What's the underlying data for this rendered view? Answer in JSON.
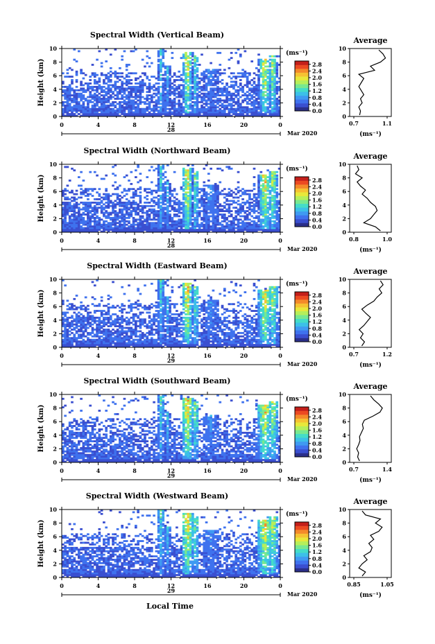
{
  "page": {
    "xlabel": "Local Time"
  },
  "colormap": [
    "#2b2f8a",
    "#3a4fd0",
    "#3f72ee",
    "#3f9af2",
    "#3cc0e8",
    "#44dcc8",
    "#78e890",
    "#b6ef5a",
    "#e8e83a",
    "#f6c232",
    "#f48a2a",
    "#ec4a22",
    "#c41f1a"
  ],
  "chart_data": [
    {
      "type": "heatmap",
      "title": "Spectral Width (Vertical Beam)",
      "ylabel": "Height (km)",
      "xticks": [
        "0",
        "4",
        "8",
        "12",
        "16",
        "20",
        "0"
      ],
      "xlim": [
        0,
        24
      ],
      "date_label": "28",
      "month_label": "Mar 2020",
      "yticks": [
        "0",
        "2",
        "4",
        "6",
        "8",
        "10"
      ],
      "ylim": [
        0,
        10
      ],
      "colorbar": {
        "unit": "(ms⁻¹)",
        "ticks": [
          "0.0",
          "0.4",
          "0.8",
          "1.2",
          "1.6",
          "2.0",
          "2.4",
          "2.8"
        ],
        "range": [
          0,
          3.0
        ]
      },
      "profile": {
        "title": "Average",
        "unit": "(ms⁻¹)",
        "xticks": [
          "0.7",
          "1.1"
        ],
        "xlim": [
          0.7,
          1.1
        ],
        "heights": [
          0.2,
          0.8,
          1.4,
          2,
          2.6,
          3.2,
          3.8,
          4.4,
          5,
          5.6,
          6.2,
          6.8,
          7.4,
          8,
          8.6,
          9.2,
          9.8
        ],
        "values": [
          0.77,
          0.78,
          0.76,
          0.8,
          0.78,
          0.82,
          0.79,
          0.76,
          0.79,
          0.82,
          0.76,
          0.95,
          0.9,
          1.02,
          1.08,
          1.05,
          1.0
        ]
      }
    },
    {
      "type": "heatmap",
      "title": "Spectral Width (Northward Beam)",
      "ylabel": "Height (km)",
      "xticks": [
        "0",
        "4",
        "8",
        "12",
        "16",
        "20",
        "0"
      ],
      "xlim": [
        0,
        24
      ],
      "date_label": "28",
      "month_label": "Mar 2020",
      "yticks": [
        "0",
        "2",
        "4",
        "6",
        "8",
        "10"
      ],
      "ylim": [
        0,
        10
      ],
      "colorbar": {
        "unit": "(ms⁻¹)",
        "ticks": [
          "0.0",
          "0.4",
          "0.8",
          "1.2",
          "1.6",
          "2.0",
          "2.4",
          "2.8"
        ],
        "range": [
          0,
          3.0
        ]
      },
      "profile": {
        "title": "Average",
        "unit": "(ms⁻¹)",
        "xticks": [
          "0.8",
          "1.0"
        ],
        "xlim": [
          0.8,
          1.0
        ],
        "heights": [
          0.2,
          0.8,
          1.4,
          2,
          2.6,
          3.2,
          3.8,
          4.4,
          5,
          5.6,
          6.2,
          6.8,
          7.4,
          8,
          8.6,
          9.2,
          9.8
        ],
        "values": [
          0.96,
          0.93,
          0.86,
          0.9,
          0.92,
          0.94,
          0.93,
          0.9,
          0.88,
          0.85,
          0.87,
          0.84,
          0.82,
          0.85,
          0.81,
          0.83,
          0.82
        ]
      }
    },
    {
      "type": "heatmap",
      "title": "Spectral Width (Eastward Beam)",
      "ylabel": "Height (km)",
      "xticks": [
        "0",
        "4",
        "8",
        "12",
        "16",
        "20",
        "0"
      ],
      "xlim": [
        0,
        24
      ],
      "date_label": "29",
      "month_label": "Mar 2020",
      "yticks": [
        "0",
        "2",
        "4",
        "6",
        "8",
        "10"
      ],
      "ylim": [
        0,
        10
      ],
      "colorbar": {
        "unit": "(ms⁻¹)",
        "ticks": [
          "0.0",
          "0.4",
          "0.8",
          "1.2",
          "1.6",
          "2.0",
          "2.4",
          "2.8"
        ],
        "range": [
          0,
          3.0
        ]
      },
      "profile": {
        "title": "Average",
        "unit": "(ms⁻¹)",
        "xticks": [
          "0.7",
          "1.2"
        ],
        "xlim": [
          0.7,
          1.2
        ],
        "heights": [
          0.2,
          0.8,
          1.4,
          2,
          2.6,
          3.2,
          3.8,
          4.4,
          5,
          5.6,
          6.2,
          6.8,
          7.4,
          8,
          8.6,
          9.2,
          9.8
        ],
        "values": [
          0.82,
          0.86,
          0.8,
          0.84,
          0.78,
          0.85,
          0.9,
          0.95,
          0.88,
          0.82,
          0.9,
          1.0,
          1.05,
          1.12,
          1.08,
          1.14,
          1.1
        ]
      }
    },
    {
      "type": "heatmap",
      "title": "Spectral Width (Southward Beam)",
      "ylabel": "Height (km)",
      "xticks": [
        "0",
        "4",
        "8",
        "12",
        "16",
        "20",
        "0"
      ],
      "xlim": [
        0,
        24
      ],
      "date_label": "29",
      "month_label": "Mar 2020",
      "yticks": [
        "0",
        "2",
        "4",
        "6",
        "8",
        "10"
      ],
      "ylim": [
        0,
        10
      ],
      "colorbar": {
        "unit": "(ms⁻¹)",
        "ticks": [
          "0.0",
          "0.4",
          "0.8",
          "1.2",
          "1.6",
          "2.0",
          "2.4",
          "2.8"
        ],
        "range": [
          0,
          3.0
        ]
      },
      "profile": {
        "title": "Average",
        "unit": "(ms⁻¹)",
        "xticks": [
          "0.7",
          "1.4"
        ],
        "xlim": [
          0.7,
          1.4
        ],
        "heights": [
          0.2,
          0.8,
          1.4,
          2,
          2.6,
          3.2,
          3.8,
          4.4,
          5,
          5.6,
          6.2,
          6.8,
          7.4,
          8,
          8.6,
          9.2,
          9.8
        ],
        "values": [
          0.82,
          0.78,
          0.8,
          0.76,
          0.8,
          0.83,
          0.82,
          0.86,
          0.9,
          0.88,
          0.92,
          1.1,
          1.25,
          1.3,
          1.22,
          1.12,
          1.05
        ]
      }
    },
    {
      "type": "heatmap",
      "title": "Spectral Width (Westward Beam)",
      "ylabel": "Height (km)",
      "xticks": [
        "0",
        "4",
        "8",
        "12",
        "16",
        "20",
        "0"
      ],
      "xlim": [
        0,
        24
      ],
      "date_label": "29",
      "month_label": "Mar 2020",
      "yticks": [
        "0",
        "2",
        "4",
        "6",
        "8",
        "10"
      ],
      "ylim": [
        0,
        10
      ],
      "colorbar": {
        "unit": "(ms⁻¹)",
        "ticks": [
          "0.0",
          "0.4",
          "0.8",
          "1.2",
          "1.6",
          "2.0",
          "2.4",
          "2.8"
        ],
        "range": [
          0,
          3.0
        ]
      },
      "profile": {
        "title": "Average",
        "unit": "(ms⁻¹)",
        "xticks": [
          "0.85",
          "1.05"
        ],
        "xlim": [
          0.85,
          1.05
        ],
        "heights": [
          0.2,
          0.8,
          1.4,
          2,
          2.6,
          3.2,
          3.8,
          4.4,
          5,
          5.6,
          6.2,
          6.8,
          7.4,
          8,
          8.6,
          9.2,
          9.8
        ],
        "values": [
          0.9,
          0.92,
          0.88,
          0.9,
          0.93,
          0.91,
          0.95,
          0.96,
          0.94,
          0.97,
          0.95,
          1.0,
          1.02,
          0.98,
          1.01,
          0.92,
          0.9
        ]
      }
    }
  ]
}
